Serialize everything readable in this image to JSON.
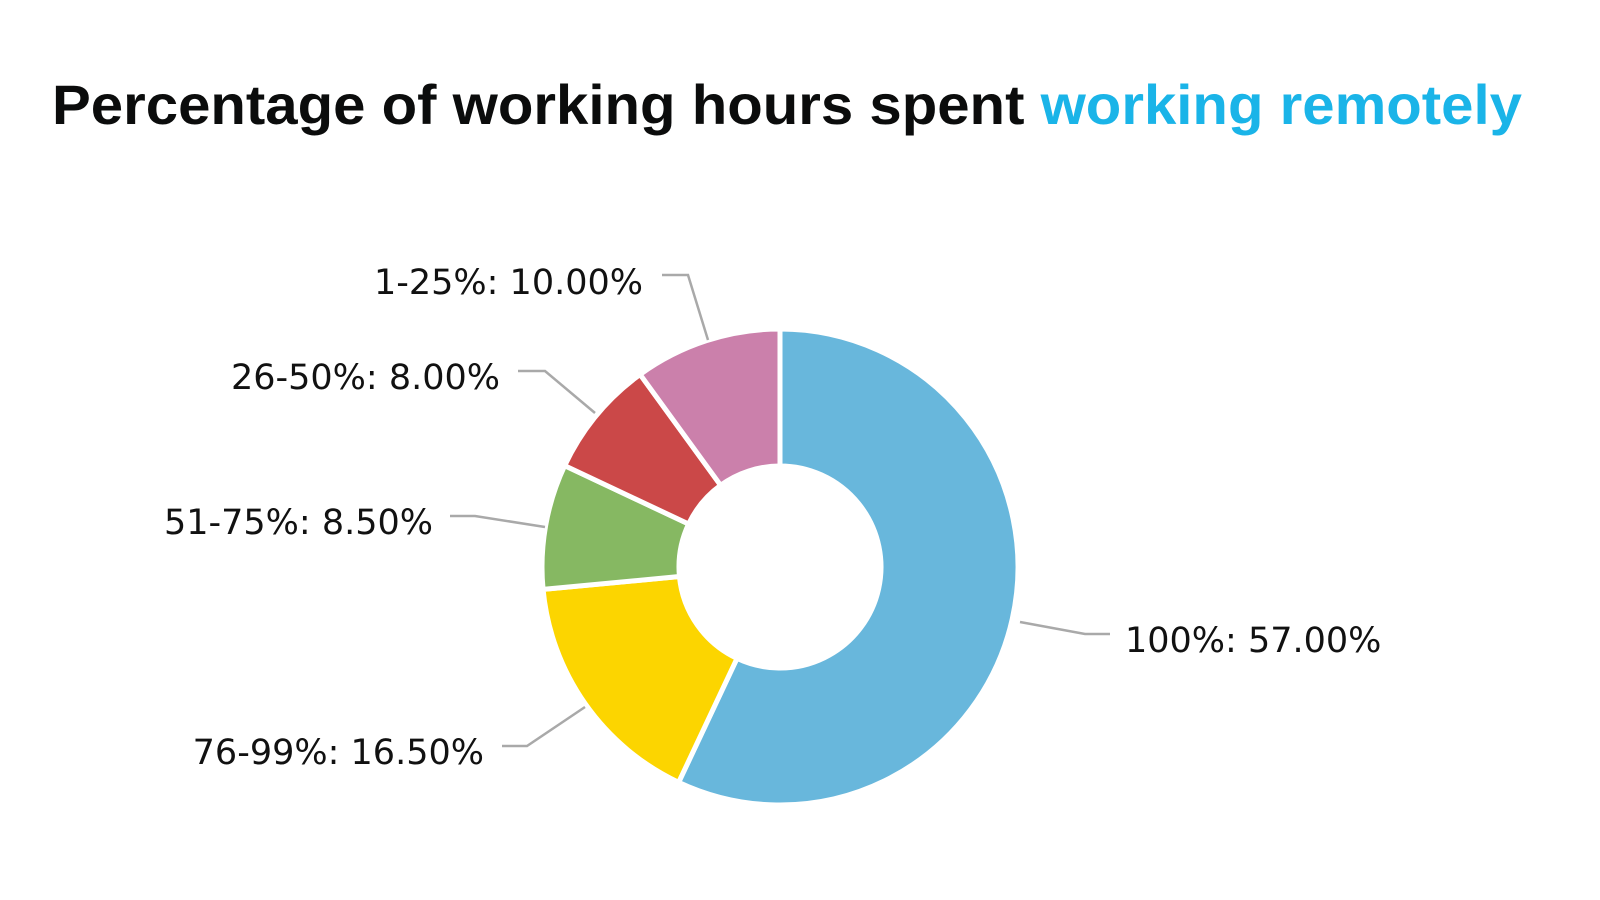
{
  "chart_data": {
    "type": "pie",
    "variant": "donut",
    "title": {
      "prefix": "Percentage of working hours spent ",
      "highlight": "working remotely",
      "highlight_color": "#1ab4e8"
    },
    "start_angle": "12 o'clock",
    "direction": "clockwise",
    "slices": [
      {
        "label": "100%",
        "value": 57.0,
        "display": "100%: 57.00%",
        "color": "#68b7dc"
      },
      {
        "label": "76-99%",
        "value": 16.5,
        "display": "76-99%: 16.50%",
        "color": "#fcd500"
      },
      {
        "label": "51-75%",
        "value": 8.5,
        "display": "51-75%: 8.50%",
        "color": "#86b862"
      },
      {
        "label": "26-50%",
        "value": 8.0,
        "display": "26-50%: 8.00%",
        "color": "#cb4848"
      },
      {
        "label": "1-25%",
        "value": 10.0,
        "display": "1-25%: 10.00%",
        "color": "#cb80ab"
      }
    ]
  }
}
